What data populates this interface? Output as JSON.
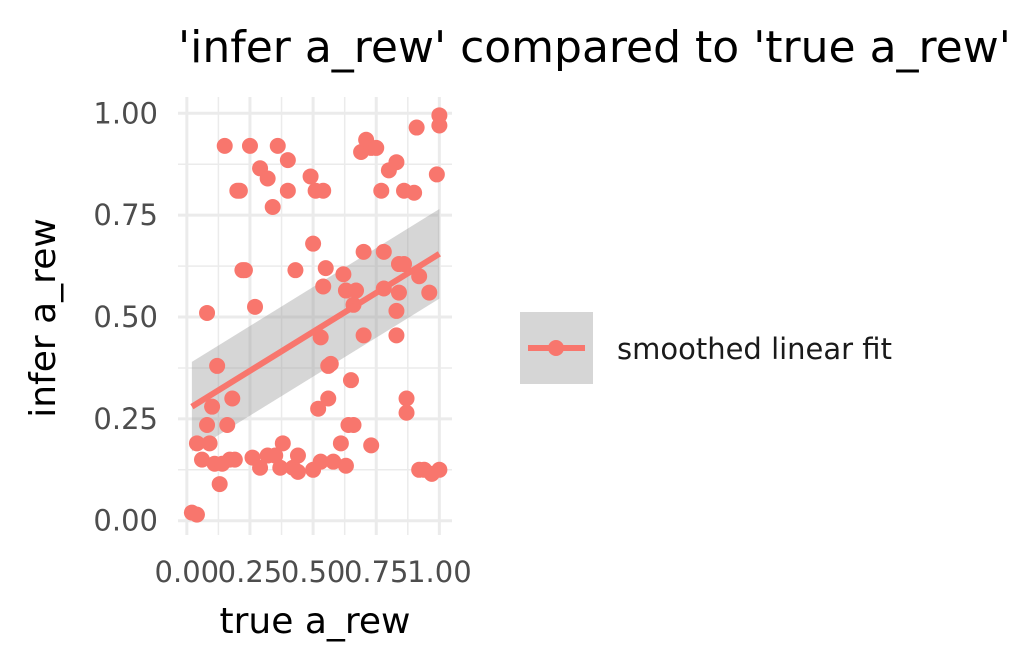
{
  "chart_data": {
    "type": "scatter",
    "title": "'infer a_rew' compared to 'true a_rew'",
    "xlabel": "true a_rew",
    "ylabel": "infer a_rew",
    "xlim": [
      0,
      1
    ],
    "ylim": [
      0,
      1
    ],
    "x_ticks": [
      "0.00",
      "0.25",
      "0.50",
      "0.75",
      "1.00"
    ],
    "y_ticks": [
      "0.00",
      "0.25",
      "0.50",
      "0.75",
      "1.00"
    ],
    "grid": true,
    "legend_position": "right",
    "series": [
      {
        "name": "smoothed linear fit",
        "color": "#F8766D",
        "points": [
          [
            0.02,
            0.02
          ],
          [
            0.04,
            0.015
          ],
          [
            0.04,
            0.19
          ],
          [
            0.06,
            0.15
          ],
          [
            0.08,
            0.235
          ],
          [
            0.08,
            0.51
          ],
          [
            0.09,
            0.19
          ],
          [
            0.1,
            0.28
          ],
          [
            0.11,
            0.14
          ],
          [
            0.12,
            0.38
          ],
          [
            0.13,
            0.09
          ],
          [
            0.14,
            0.14
          ],
          [
            0.15,
            0.92
          ],
          [
            0.16,
            0.235
          ],
          [
            0.17,
            0.15
          ],
          [
            0.18,
            0.3
          ],
          [
            0.19,
            0.15
          ],
          [
            0.2,
            0.81
          ],
          [
            0.21,
            0.81
          ],
          [
            0.22,
            0.615
          ],
          [
            0.23,
            0.615
          ],
          [
            0.25,
            0.92
          ],
          [
            0.26,
            0.155
          ],
          [
            0.27,
            0.525
          ],
          [
            0.29,
            0.865
          ],
          [
            0.29,
            0.13
          ],
          [
            0.32,
            0.84
          ],
          [
            0.32,
            0.16
          ],
          [
            0.34,
            0.77
          ],
          [
            0.35,
            0.16
          ],
          [
            0.36,
            0.92
          ],
          [
            0.37,
            0.13
          ],
          [
            0.38,
            0.19
          ],
          [
            0.4,
            0.885
          ],
          [
            0.4,
            0.81
          ],
          [
            0.42,
            0.13
          ],
          [
            0.43,
            0.615
          ],
          [
            0.44,
            0.16
          ],
          [
            0.44,
            0.12
          ],
          [
            0.49,
            0.845
          ],
          [
            0.5,
            0.68
          ],
          [
            0.5,
            0.125
          ],
          [
            0.51,
            0.81
          ],
          [
            0.52,
            0.275
          ],
          [
            0.53,
            0.145
          ],
          [
            0.53,
            0.45
          ],
          [
            0.54,
            0.81
          ],
          [
            0.54,
            0.575
          ],
          [
            0.55,
            0.62
          ],
          [
            0.56,
            0.38
          ],
          [
            0.56,
            0.3
          ],
          [
            0.57,
            0.385
          ],
          [
            0.58,
            0.145
          ],
          [
            0.61,
            0.19
          ],
          [
            0.62,
            0.605
          ],
          [
            0.63,
            0.135
          ],
          [
            0.63,
            0.565
          ],
          [
            0.64,
            0.235
          ],
          [
            0.65,
            0.345
          ],
          [
            0.66,
            0.53
          ],
          [
            0.66,
            0.235
          ],
          [
            0.67,
            0.565
          ],
          [
            0.69,
            0.905
          ],
          [
            0.7,
            0.66
          ],
          [
            0.7,
            0.455
          ],
          [
            0.71,
            0.935
          ],
          [
            0.73,
            0.915
          ],
          [
            0.73,
            0.185
          ],
          [
            0.75,
            0.915
          ],
          [
            0.77,
            0.81
          ],
          [
            0.78,
            0.66
          ],
          [
            0.78,
            0.57
          ],
          [
            0.8,
            0.86
          ],
          [
            0.83,
            0.88
          ],
          [
            0.83,
            0.515
          ],
          [
            0.83,
            0.455
          ],
          [
            0.84,
            0.56
          ],
          [
            0.84,
            0.63
          ],
          [
            0.86,
            0.81
          ],
          [
            0.86,
            0.63
          ],
          [
            0.87,
            0.265
          ],
          [
            0.87,
            0.3
          ],
          [
            0.9,
            0.805
          ],
          [
            0.91,
            0.965
          ],
          [
            0.92,
            0.6
          ],
          [
            0.92,
            0.125
          ],
          [
            0.94,
            0.125
          ],
          [
            0.96,
            0.56
          ],
          [
            0.97,
            0.115
          ],
          [
            0.99,
            0.85
          ],
          [
            1.0,
            0.97
          ],
          [
            1.0,
            0.995
          ],
          [
            1.0,
            0.125
          ]
        ]
      }
    ],
    "fit": {
      "x_range": [
        0.02,
        1.0
      ],
      "line_y": [
        0.28,
        0.655
      ],
      "band_lower": [
        0.17,
        0.545
      ],
      "band_upper": [
        0.39,
        0.765
      ],
      "line_color": "#F8766D",
      "band_color": "#999999"
    }
  }
}
